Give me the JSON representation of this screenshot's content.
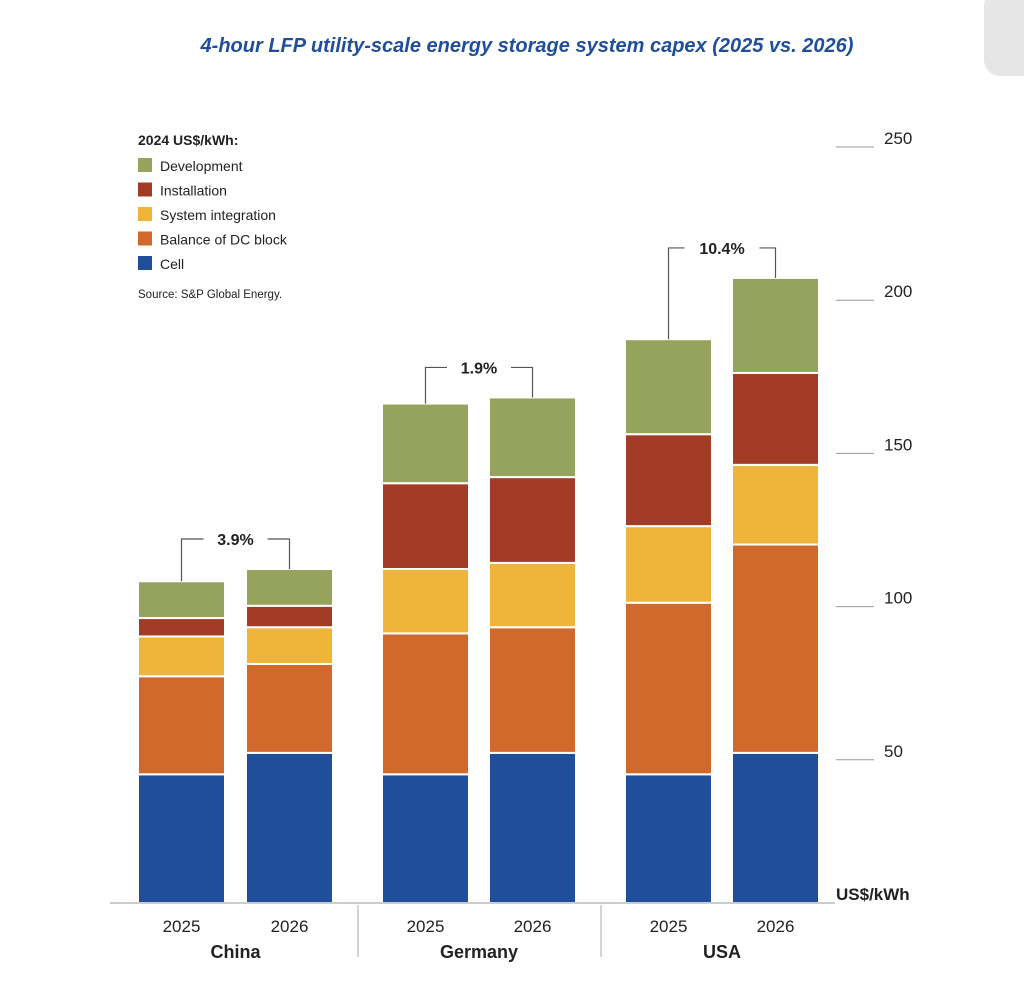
{
  "chart_data": {
    "type": "bar",
    "stacked": true,
    "title": "4-hour LFP utility-scale energy storage system capex (2025 vs. 2026)",
    "unit_label": "2024 US$/kWh:",
    "source": "Source: S&P Global Energy.",
    "ylabel": "US$/kWh",
    "ylim": [
      0,
      250
    ],
    "yticks": [
      50,
      100,
      150,
      200,
      250
    ],
    "grid": false,
    "legend_position": "top-left",
    "groups": [
      "China",
      "Germany",
      "USA"
    ],
    "x_labels": [
      "2025",
      "2026"
    ],
    "change_labels": [
      "3.9%",
      "1.9%",
      "10.4%"
    ],
    "series": [
      {
        "name": "Cell",
        "color": "#1f4e9a",
        "values": [
          42,
          49,
          42,
          49,
          42,
          49
        ]
      },
      {
        "name": "Balance of DC block",
        "color": "#d2692c",
        "values": [
          32,
          29,
          46,
          41,
          56,
          68
        ]
      },
      {
        "name": "System integration",
        "color": "#efb43a",
        "values": [
          13,
          12,
          21,
          21,
          25,
          26
        ]
      },
      {
        "name": "Installation",
        "color": "#a23c27",
        "values": [
          6,
          7,
          28,
          28,
          30,
          30
        ]
      },
      {
        "name": "Development",
        "color": "#95a35c",
        "values": [
          12,
          12,
          26,
          26,
          31,
          31
        ]
      }
    ]
  },
  "colors": {
    "title": "#1f4e9a",
    "text": "#222222",
    "axis": "#999999"
  }
}
